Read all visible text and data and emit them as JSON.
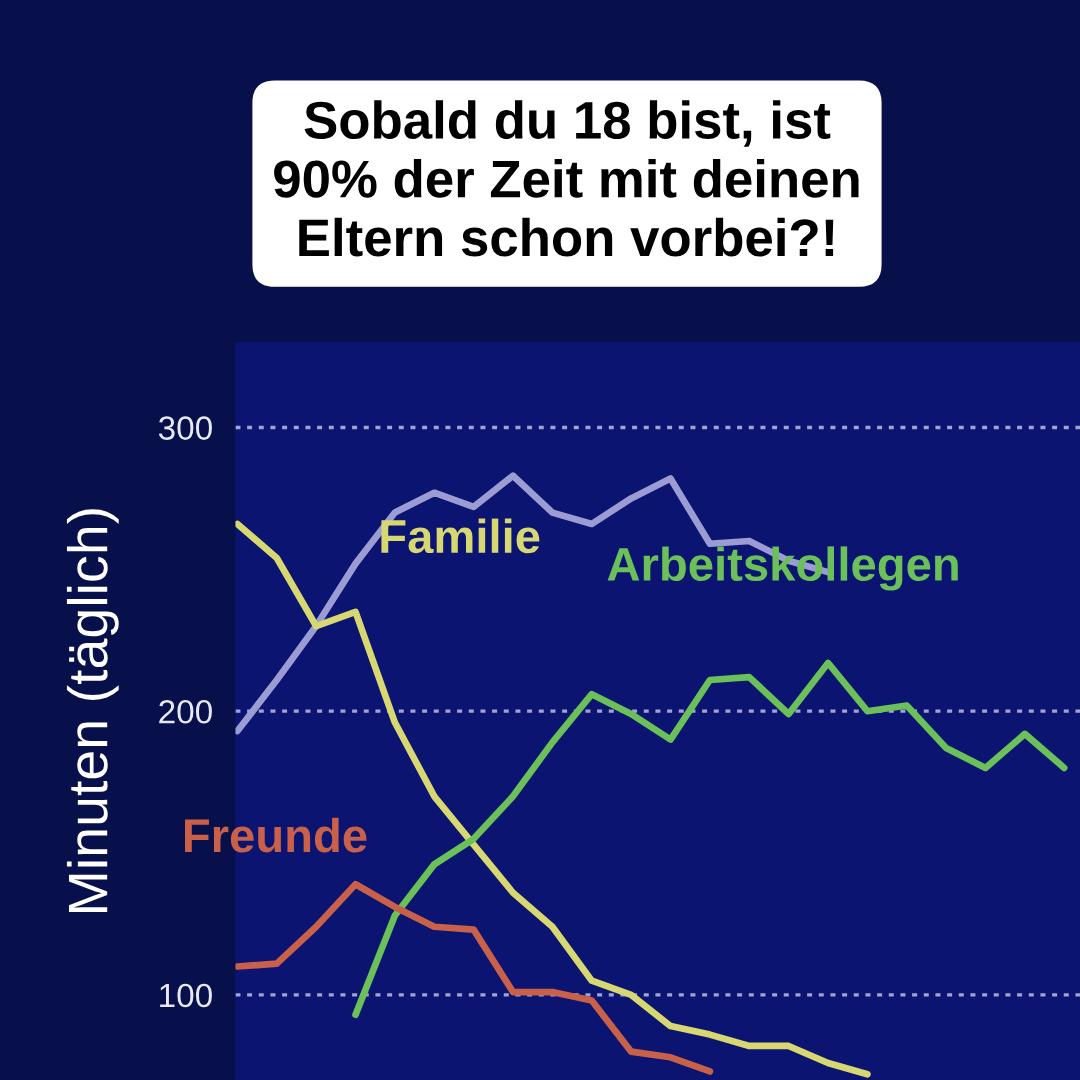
{
  "chart_data": {
    "type": "line",
    "title": "Sobald du 18 bist, ist\n90% der Zeit mit deinen\nEltern schon vorbei?!",
    "ylabel": "Minuten (täglich)",
    "categories": [
      null,
      null,
      null,
      null,
      null,
      null,
      null,
      null,
      null,
      null,
      null,
      null,
      null,
      null,
      null,
      null,
      null,
      null,
      null,
      null,
      null,
      null
    ],
    "series": [
      {
        "color": "#9c9cd4",
        "values": [
          193,
          211,
          230,
          252,
          270,
          277,
          272,
          283,
          270,
          266,
          275,
          282,
          259,
          260,
          253,
          249,
          null,
          null,
          null,
          null,
          null,
          null
        ]
      },
      {
        "name": "Familie",
        "color": "#d8d872",
        "values": [
          266,
          254,
          230,
          235,
          196,
          170,
          153,
          136,
          124,
          105,
          100,
          89,
          86,
          82,
          82,
          76,
          72,
          null,
          null,
          null,
          null,
          null
        ]
      },
      {
        "name": "Arbeitskollegen",
        "color": "#6cc05a",
        "values": [
          null,
          null,
          null,
          93,
          128,
          146,
          155,
          170,
          189,
          206,
          199,
          190,
          211,
          212,
          199,
          217,
          200,
          202,
          187,
          180,
          192,
          180
        ]
      },
      {
        "name": "Freunde",
        "color": "#c8604a",
        "values": [
          110,
          111,
          124,
          139,
          131,
          124,
          123,
          101,
          101,
          98,
          80,
          78,
          73,
          null,
          null,
          null,
          null,
          null,
          null,
          null,
          null,
          null
        ]
      }
    ],
    "ylim": [
      70,
      330
    ],
    "yticks": [
      100,
      200,
      300
    ],
    "grid": "y",
    "legend": false,
    "tick_labels": "y",
    "marker": "none",
    "line_style": "solid"
  }
}
